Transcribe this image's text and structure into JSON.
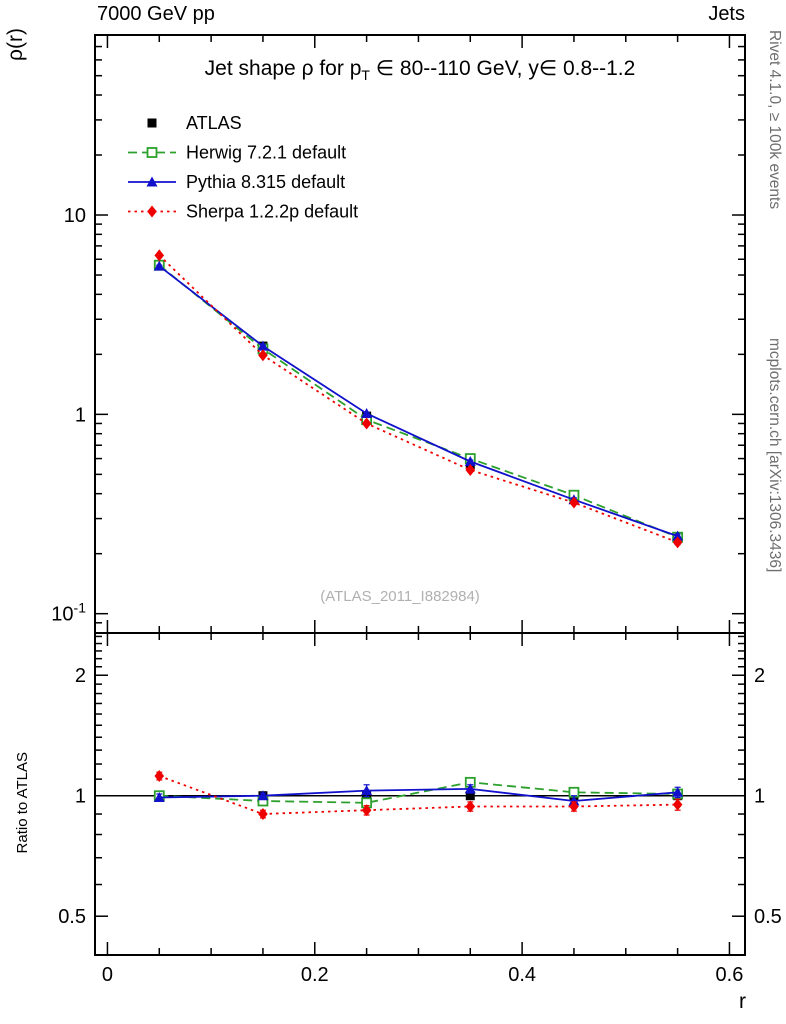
{
  "header": {
    "left": "7000 GeV pp",
    "right": "Jets"
  },
  "side_notes": {
    "rivet": "Rivet 4.1.0, ≥ 100k events",
    "mcplots": "mcplots.cern.ch [arXiv:1306.3436]"
  },
  "watermark": "(ATLAS_2011_I882984)",
  "chart_data": {
    "type": "line",
    "title": "Jet shape ρ for p_T ∈ 80--110 GeV, y∈ 0.8--1.2",
    "title_parts": [
      {
        "t": "Jet shape ρ for p"
      },
      {
        "t": "T",
        "sub": true
      },
      {
        "t": " ∈ 80--110 GeV, y∈ 0.8--1.2"
      }
    ],
    "xlabel": "r",
    "ylabel_top": "ρ(r)",
    "ylabel_bottom": "Ratio to ATLAS",
    "xlim": [
      -0.012,
      0.615
    ],
    "ylim_top": [
      0.08,
      80
    ],
    "yscale_top": "log",
    "ylim_bottom": [
      0.4,
      2.55
    ],
    "yscale_bottom": "log",
    "grid": false,
    "legend_position": "top-left",
    "x": [
      0.05,
      0.15,
      0.25,
      0.35,
      0.45,
      0.55
    ],
    "xticks": [
      {
        "v": 0,
        "t": "0"
      },
      {
        "v": 0.2,
        "t": "0.2"
      },
      {
        "v": 0.4,
        "t": "0.4"
      },
      {
        "v": 0.6,
        "t": "0.6"
      }
    ],
    "yticks_top": [
      {
        "v": 10,
        "t": "10"
      },
      {
        "v": 1,
        "t": "1"
      },
      {
        "v": 0.1,
        "t": "10",
        "sup": "-1"
      }
    ],
    "yticks_bottom": [
      {
        "v": 2,
        "t": "2"
      },
      {
        "v": 1,
        "t": "1"
      },
      {
        "v": 0.5,
        "t": "0.5"
      }
    ],
    "series": [
      {
        "name": "ATLAS",
        "color": "#000000",
        "marker": "square-filled",
        "line": "none",
        "values": [
          5.6,
          2.2,
          0.98,
          0.56,
          0.385,
          0.24
        ],
        "err": [
          0.2,
          0.08,
          0.04,
          0.025,
          0.018,
          0.012
        ],
        "ratio": [
          1,
          1,
          1,
          1,
          1,
          1
        ],
        "ratio_err": [
          0.02,
          0.015,
          0.015,
          0.015,
          0.015,
          0.015
        ]
      },
      {
        "name": "Herwig 7.2.1 default",
        "color": "#2ca02c",
        "marker": "square-open",
        "line": "dashed",
        "values": [
          5.6,
          2.13,
          0.94,
          0.6,
          0.393,
          0.242
        ],
        "err": [
          0.06,
          0.03,
          0.015,
          0.01,
          0.008,
          0.006
        ],
        "ratio": [
          1.0,
          0.97,
          0.96,
          1.08,
          1.02,
          1.01
        ],
        "ratio_err": [
          0.02,
          0.015,
          0.02,
          0.025,
          0.02,
          0.025
        ]
      },
      {
        "name": "Pythia 8.315 default",
        "color": "#1111cc",
        "marker": "triangle-filled",
        "line": "solid",
        "values": [
          5.54,
          2.2,
          1.01,
          0.58,
          0.373,
          0.245
        ],
        "err": [
          0.06,
          0.03,
          0.015,
          0.01,
          0.008,
          0.006
        ],
        "ratio": [
          0.99,
          1.0,
          1.03,
          1.04,
          0.97,
          1.02
        ],
        "ratio_err": [
          0.02,
          0.015,
          0.035,
          0.025,
          0.03,
          0.03
        ]
      },
      {
        "name": "Sherpa 1.2.2p default",
        "color": "#ee0000",
        "marker": "diamond-filled",
        "line": "dotted",
        "values": [
          6.27,
          1.98,
          0.9,
          0.526,
          0.361,
          0.228
        ],
        "err": [
          0.07,
          0.03,
          0.015,
          0.01,
          0.008,
          0.006
        ],
        "ratio": [
          1.12,
          0.9,
          0.92,
          0.94,
          0.94,
          0.95
        ],
        "ratio_err": [
          0.025,
          0.02,
          0.025,
          0.025,
          0.025,
          0.03
        ]
      }
    ]
  }
}
